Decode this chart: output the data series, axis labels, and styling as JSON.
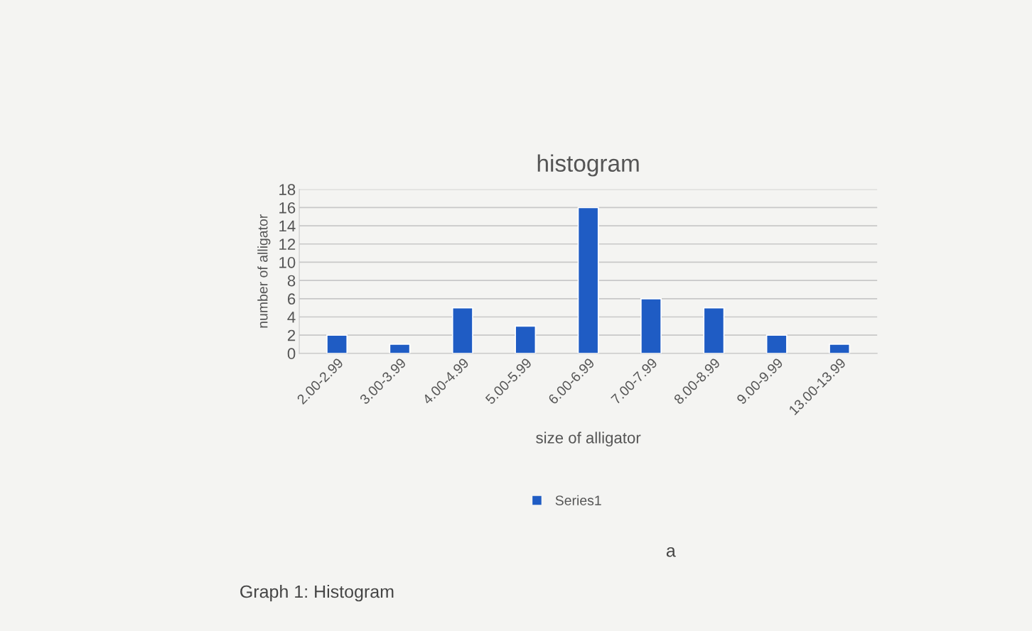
{
  "chart_data": {
    "type": "bar",
    "title": "histogram",
    "xlabel": "size of alligator",
    "ylabel": "number of alligator",
    "categories": [
      "2.00-2.99",
      "3.00-3.99",
      "4.00-4.99",
      "5.00-5.99",
      "6.00-6.99",
      "7.00-7.99",
      "8.00-8.99",
      "9.00-9.99",
      "13.00-13.99"
    ],
    "series": [
      {
        "name": "Series1",
        "color": "#1f5cc4",
        "values": [
          2,
          1,
          5,
          3,
          16,
          6,
          5,
          2,
          1
        ]
      }
    ],
    "ylim": [
      0,
      18
    ],
    "yticks": [
      0,
      2,
      4,
      6,
      8,
      10,
      12,
      14,
      16,
      18
    ],
    "grid": "y",
    "legend": "bottom",
    "annotations": [
      "a",
      "Graph 1: Histogram"
    ]
  }
}
